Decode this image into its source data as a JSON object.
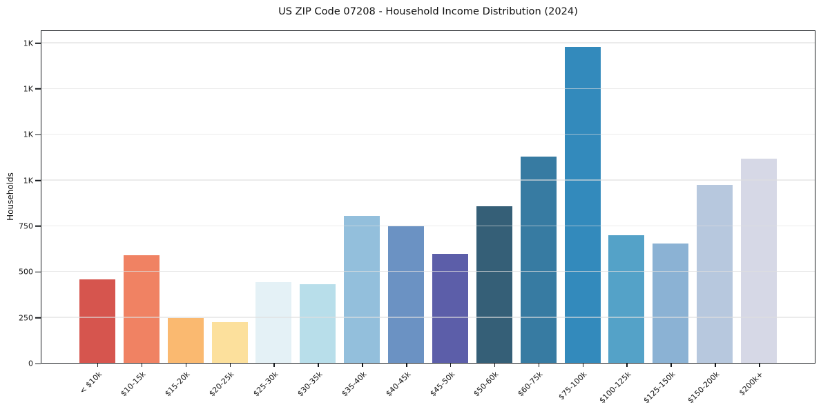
{
  "chart_data": {
    "type": "bar",
    "title": "US ZIP Code 07208 - Household Income Distribution (2024)",
    "xlabel": "",
    "ylabel": "Households",
    "ylim": [
      0,
      1820
    ],
    "grid": "horizontal",
    "legend": "none",
    "yticks": [
      {
        "value": 0,
        "label": "0"
      },
      {
        "value": 250,
        "label": "250"
      },
      {
        "value": 500,
        "label": "500"
      },
      {
        "value": 750,
        "label": "750"
      },
      {
        "value": 1000,
        "label": "1K"
      },
      {
        "value": 1250,
        "label": "1K"
      },
      {
        "value": 1500,
        "label": "1K"
      },
      {
        "value": 1750,
        "label": "1K"
      }
    ],
    "categories": [
      "< $10k",
      "$10-15k",
      "$15-20k",
      "$20-25k",
      "$25-30k",
      "$30-35k",
      "$35-40k",
      "$40-45k",
      "$45-50k",
      "$50-60k",
      "$60-75k",
      "$75-100k",
      "$100-125k",
      "$125-150k",
      "$150-200k",
      "$200k+"
    ],
    "values": [
      460,
      590,
      250,
      225,
      445,
      435,
      805,
      750,
      600,
      860,
      1130,
      1730,
      700,
      655,
      975,
      1120
    ],
    "bar_colors": [
      "#d6554e",
      "#f08263",
      "#fab970",
      "#fce09c",
      "#e4f1f6",
      "#b8deea",
      "#93bfdc",
      "#6b92c3",
      "#5c5ea9",
      "#355f77",
      "#377ba2",
      "#338abc",
      "#54a2c8",
      "#8bb2d4",
      "#b7c8de",
      "#d6d8e6"
    ],
    "axis_color": "#15181c",
    "gridline_color": "#dfdfdf"
  }
}
